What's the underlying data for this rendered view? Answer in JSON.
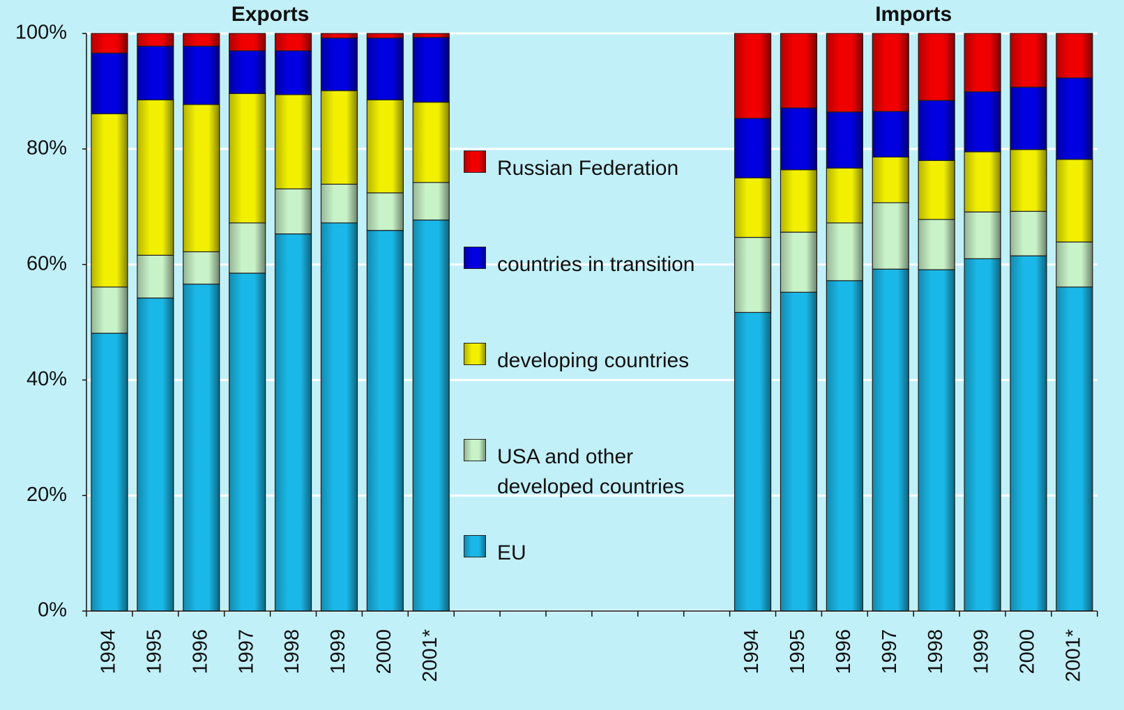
{
  "chart_data": {
    "type": "stacked_bar",
    "annotations": [
      {
        "text": "Exports"
      },
      {
        "text": "Imports"
      }
    ],
    "categories": [
      "1994",
      "1995",
      "1996",
      "1997",
      "1998",
      "1999",
      "2000",
      "2001*",
      null,
      null,
      null,
      null,
      null,
      null,
      "1994",
      "1995",
      "1996",
      "1997",
      "1998",
      "1999",
      "2000",
      "2001*"
    ],
    "series": [
      {
        "name": "EU",
        "color": "#1ab8e8",
        "values": [
          48.1,
          54.2,
          56.6,
          58.5,
          65.3,
          67.2,
          65.9,
          67.7,
          null,
          null,
          null,
          null,
          null,
          null,
          51.7,
          55.2,
          57.2,
          59.2,
          59.1,
          61.0,
          61.5,
          56.1
        ]
      },
      {
        "name": "USA and other developed countries",
        "color": "#c8f2c8",
        "values": [
          8.0,
          7.4,
          5.6,
          8.7,
          7.8,
          6.7,
          6.5,
          6.5,
          null,
          null,
          null,
          null,
          null,
          null,
          13.0,
          10.4,
          10.0,
          11.5,
          8.7,
          8.1,
          7.7,
          7.8
        ]
      },
      {
        "name": "developing countries",
        "color": "#f2f000",
        "values": [
          30.0,
          26.9,
          25.5,
          22.4,
          16.3,
          16.2,
          16.1,
          13.9,
          null,
          null,
          null,
          null,
          null,
          null,
          10.3,
          10.8,
          9.5,
          7.9,
          10.2,
          10.4,
          10.7,
          14.3
        ]
      },
      {
        "name": "countries in transition",
        "color": "#0000e0",
        "values": [
          10.5,
          9.3,
          10.1,
          7.4,
          7.6,
          9.1,
          10.7,
          11.2,
          null,
          null,
          null,
          null,
          null,
          null,
          10.3,
          10.7,
          9.7,
          7.9,
          10.4,
          10.4,
          10.8,
          14.1
        ]
      },
      {
        "name": "Russian Federation",
        "color": "#f00000",
        "values": [
          3.4,
          2.2,
          2.2,
          3.0,
          3.0,
          0.8,
          0.8,
          0.7,
          null,
          null,
          null,
          null,
          null,
          null,
          14.7,
          12.9,
          13.6,
          13.5,
          11.6,
          10.1,
          9.3,
          7.7
        ]
      }
    ],
    "ylim": [
      0,
      100
    ],
    "yticks": [
      {
        "value": 0,
        "label": "0%"
      },
      {
        "value": 20,
        "label": "20%"
      },
      {
        "value": 40,
        "label": "40%"
      },
      {
        "value": 60,
        "label": "60%"
      },
      {
        "value": 80,
        "label": "80%"
      },
      {
        "value": 100,
        "label": "100%"
      }
    ],
    "grid": true
  }
}
